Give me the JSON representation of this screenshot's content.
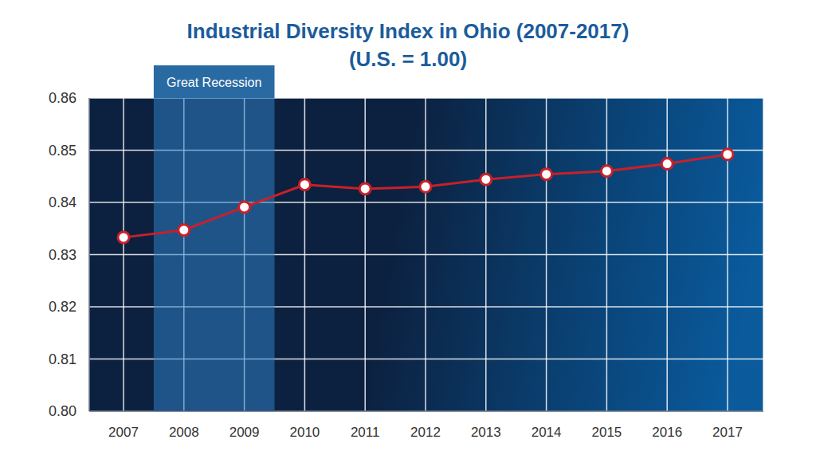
{
  "chart_data": {
    "type": "line",
    "title": "Industrial Diversity Index in Ohio (2007-2017)",
    "subtitle": "(U.S. = 1.00)",
    "categories": [
      "2007",
      "2008",
      "2009",
      "2010",
      "2011",
      "2012",
      "2013",
      "2014",
      "2015",
      "2016",
      "2017"
    ],
    "values": [
      0.8333,
      0.8347,
      0.8391,
      0.8434,
      0.8426,
      0.843,
      0.8444,
      0.8454,
      0.846,
      0.8474,
      0.8492
    ],
    "color": "#c8202a",
    "marker": "circle",
    "line_style": "solid",
    "ylim": [
      0.8,
      0.86
    ],
    "yticks": [
      {
        "value": 0.8,
        "label": "0.80"
      },
      0.81,
      0.82,
      0.83,
      0.84,
      0.85,
      0.86
    ],
    "grid": true,
    "annotations": [
      {
        "text": "Great Recession",
        "x": [
          "2008",
          "2009"
        ]
      }
    ]
  }
}
